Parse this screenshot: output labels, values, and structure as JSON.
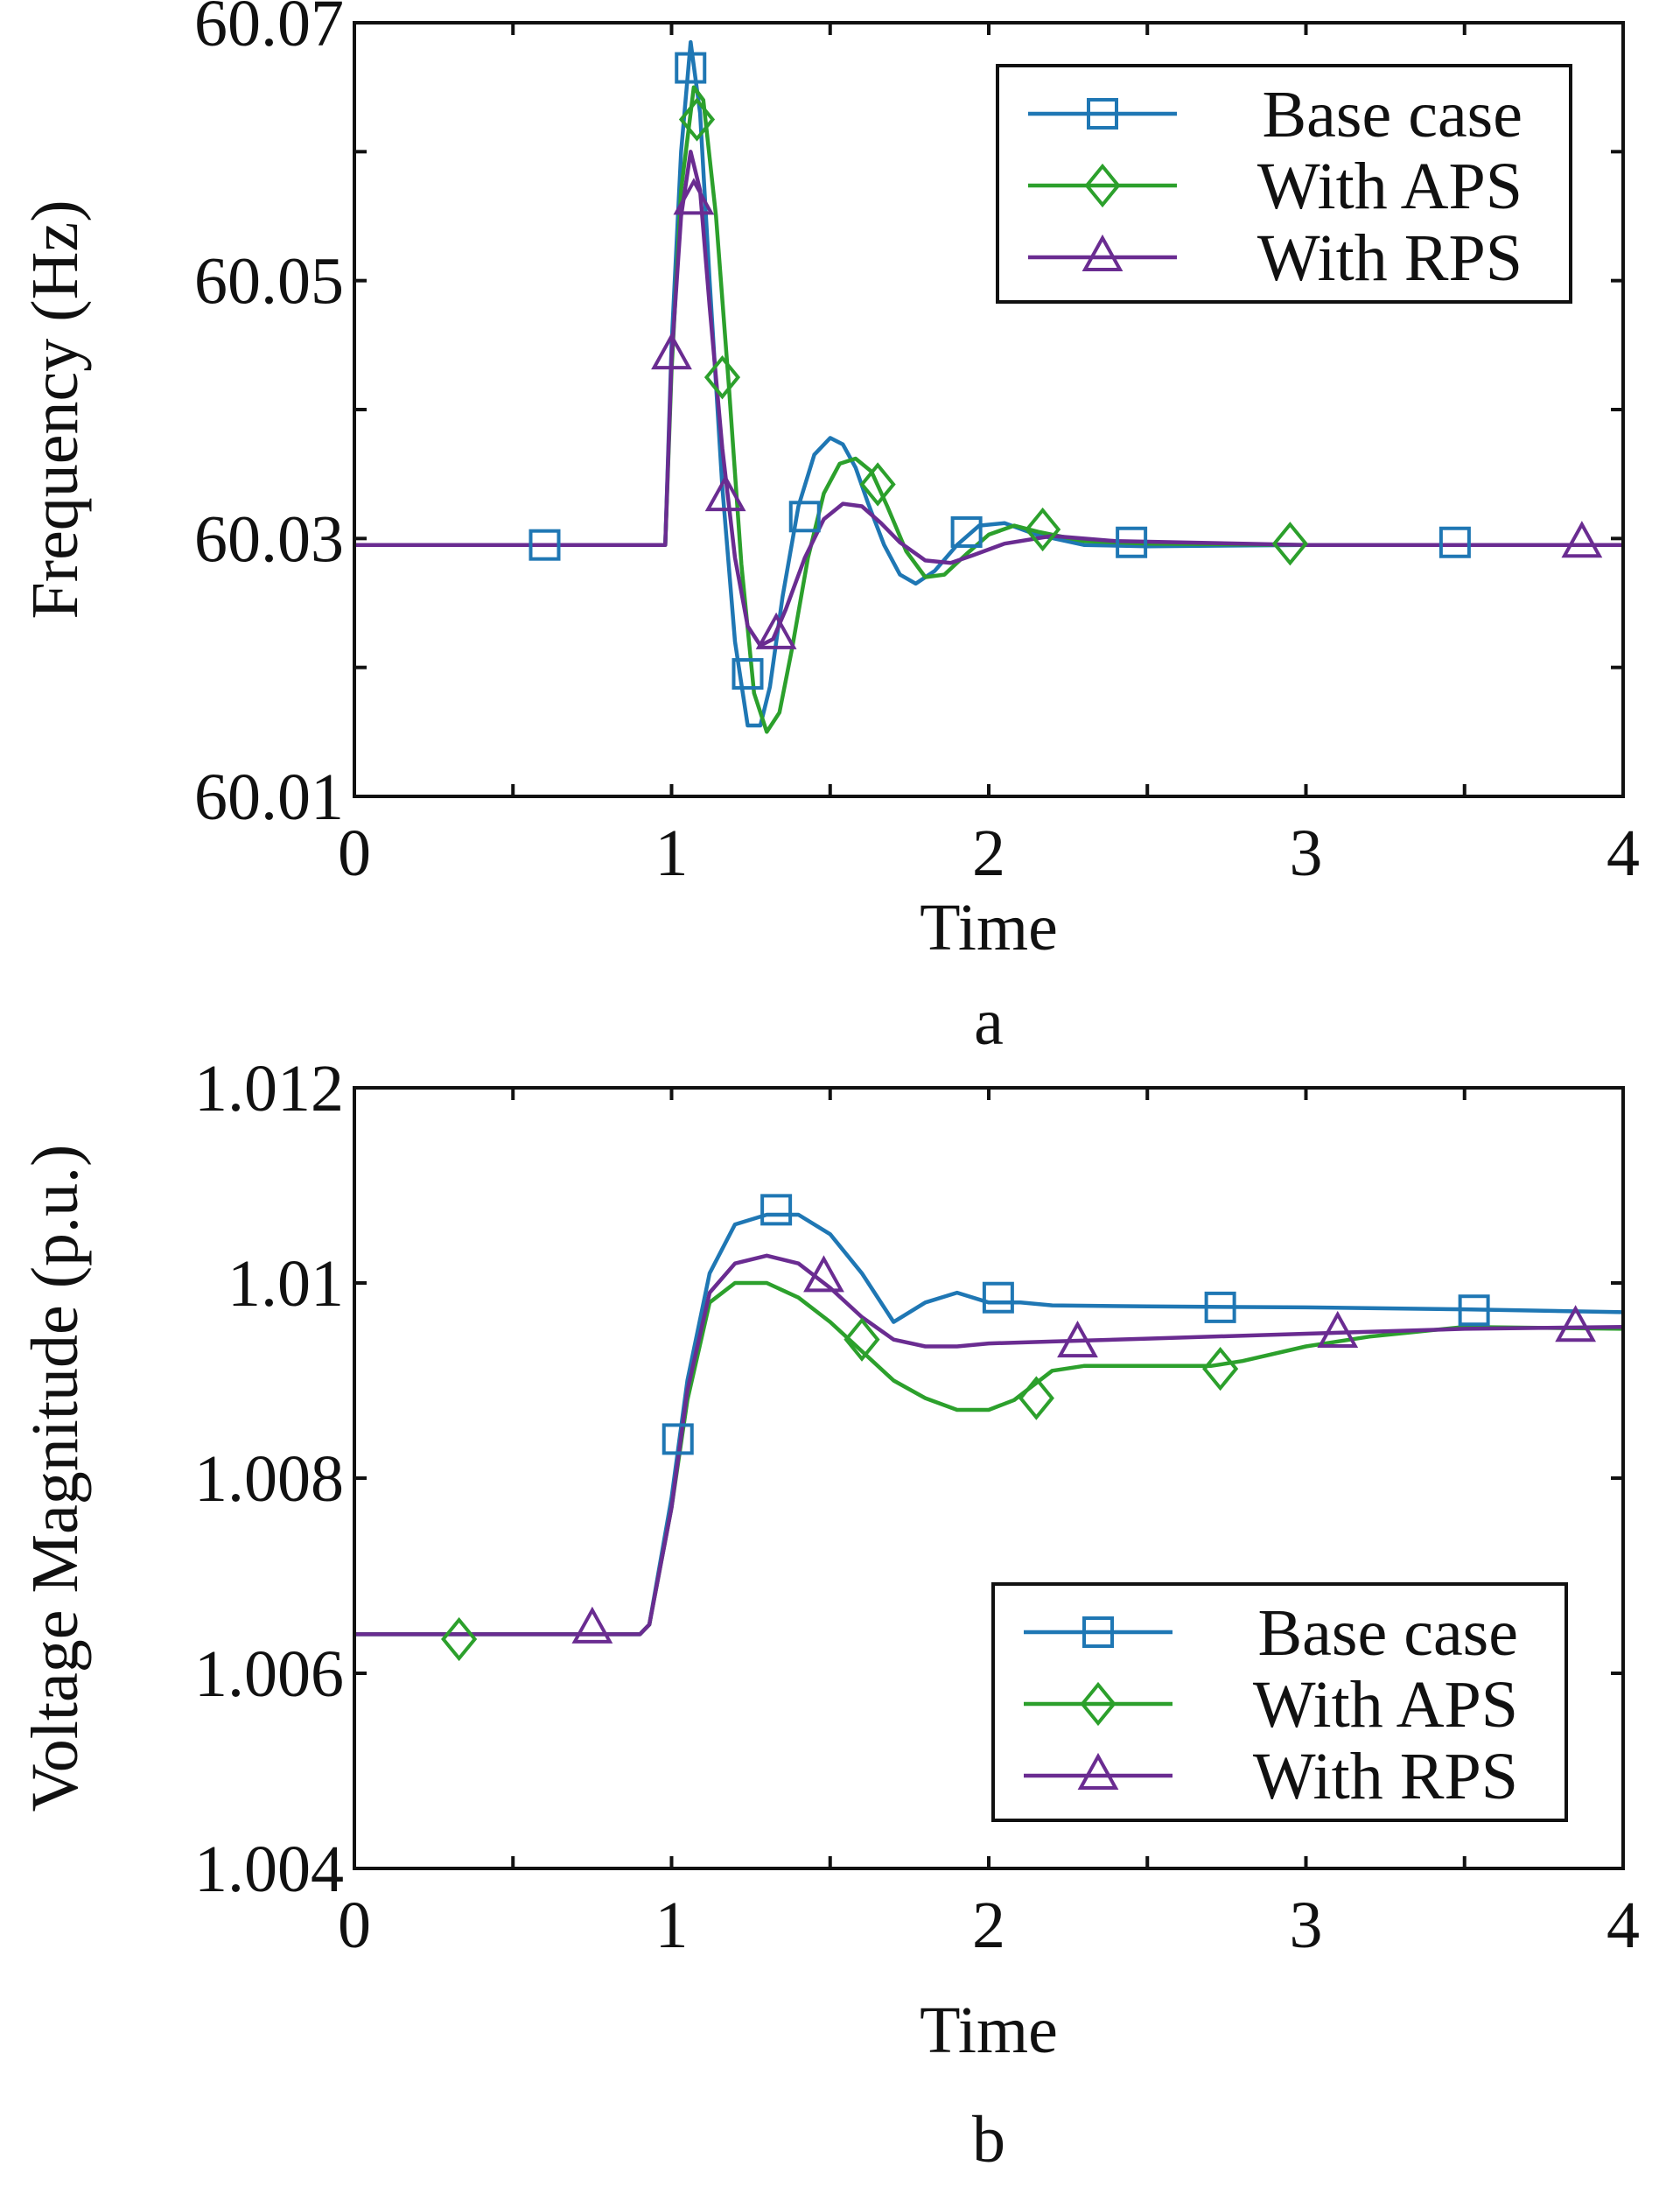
{
  "chart_data": [
    {
      "type": "line",
      "panel_label": "a",
      "xlabel": "Time",
      "ylabel": "Frequency (Hz)",
      "xlim": [
        0,
        4
      ],
      "ylim": [
        60.01,
        60.07
      ],
      "x_ticks": [
        0,
        1,
        2,
        3,
        4
      ],
      "x_tick_labels": [
        "0",
        "1",
        "2",
        "3",
        "4"
      ],
      "y_ticks": [
        60.01,
        60.02,
        60.03,
        60.04,
        60.05,
        60.06,
        60.07
      ],
      "y_tick_labels": [
        "60.01",
        "",
        "60.03",
        "",
        "60.05",
        "",
        "60.07"
      ],
      "legend_position": "top-right",
      "series": [
        {
          "name": "Base case",
          "color": "#1F77B4",
          "marker": "square",
          "x": [
            0,
            0.98,
            1.0,
            1.03,
            1.06,
            1.09,
            1.12,
            1.16,
            1.2,
            1.24,
            1.28,
            1.31,
            1.35,
            1.4,
            1.45,
            1.5,
            1.54,
            1.58,
            1.62,
            1.67,
            1.72,
            1.77,
            1.83,
            1.9,
            1.97,
            2.05,
            2.15,
            2.3,
            2.5,
            3.0,
            4.0
          ],
          "y": [
            60.0295,
            60.0295,
            60.045,
            60.06,
            60.0685,
            60.063,
            60.05,
            60.034,
            60.022,
            60.0155,
            60.0155,
            60.0185,
            60.0255,
            60.0325,
            60.0365,
            60.0378,
            60.0373,
            60.0355,
            60.0327,
            60.0295,
            60.0272,
            60.0265,
            60.0275,
            60.0295,
            60.031,
            60.0312,
            60.0303,
            60.0295,
            60.0294,
            60.0295,
            60.0295
          ],
          "marker_x": [
            0.6,
            1.06,
            1.24,
            1.42,
            1.93,
            2.45,
            3.47
          ],
          "marker_y": [
            60.0295,
            60.0665,
            60.0195,
            60.0317,
            60.0305,
            60.0297,
            60.0297
          ]
        },
        {
          "name": "With APS",
          "color": "#2CA02C",
          "marker": "diamond",
          "x": [
            0,
            0.98,
            1.0,
            1.03,
            1.07,
            1.1,
            1.14,
            1.18,
            1.22,
            1.26,
            1.3,
            1.34,
            1.38,
            1.43,
            1.48,
            1.53,
            1.58,
            1.63,
            1.68,
            1.74,
            1.8,
            1.86,
            1.93,
            2.0,
            2.08,
            2.16,
            2.3,
            2.5,
            3.0,
            4.0
          ],
          "y": [
            60.0295,
            60.0295,
            60.043,
            60.057,
            60.065,
            60.064,
            60.055,
            60.042,
            60.028,
            60.018,
            60.015,
            60.0165,
            60.0215,
            60.0285,
            60.0335,
            60.0358,
            60.0362,
            60.0352,
            60.0325,
            60.029,
            60.027,
            60.0272,
            60.0288,
            60.0303,
            60.031,
            60.0305,
            60.0298,
            60.0296,
            60.0295,
            60.0295
          ],
          "marker_x": [
            1.08,
            1.16,
            1.65,
            2.17,
            2.95
          ],
          "marker_y": [
            60.0625,
            60.0425,
            60.0342,
            60.0307,
            60.0296
          ]
        },
        {
          "name": "With RPS",
          "color": "#6A2C91",
          "marker": "triangle",
          "x": [
            0,
            0.98,
            1.0,
            1.03,
            1.06,
            1.09,
            1.12,
            1.16,
            1.2,
            1.24,
            1.28,
            1.32,
            1.36,
            1.42,
            1.48,
            1.54,
            1.6,
            1.66,
            1.72,
            1.8,
            1.88,
            1.95,
            2.05,
            2.2,
            2.4,
            3.0,
            4.0
          ],
          "y": [
            60.0295,
            60.0295,
            60.044,
            60.055,
            60.06,
            60.057,
            60.048,
            60.037,
            60.0285,
            60.0232,
            60.0217,
            60.0222,
            60.0245,
            60.0285,
            60.0315,
            60.0327,
            60.0325,
            60.0312,
            60.0297,
            60.0283,
            60.0281,
            60.0287,
            60.0296,
            60.0302,
            60.0298,
            60.0295,
            60.0295
          ],
          "marker_x": [
            1.0,
            1.07,
            1.17,
            1.33,
            3.87
          ],
          "marker_y": [
            60.0442,
            60.0562,
            60.0332,
            60.0225,
            60.0296
          ]
        }
      ]
    },
    {
      "type": "line",
      "panel_label": "b",
      "xlabel": "Time",
      "ylabel": "Voltage Magnitude (p.u.)",
      "xlim": [
        0,
        4
      ],
      "ylim": [
        1.004,
        1.012
      ],
      "x_ticks": [
        0,
        1,
        2,
        3,
        4
      ],
      "x_tick_labels": [
        "0",
        "1",
        "2",
        "3",
        "4"
      ],
      "y_ticks": [
        1.004,
        1.006,
        1.008,
        1.01,
        1.012
      ],
      "y_tick_labels": [
        "1.004",
        "1.006",
        "1.008",
        "1.01",
        "1.012"
      ],
      "legend_position": "bottom-right",
      "series": [
        {
          "name": "Base case",
          "color": "#1F77B4",
          "marker": "square",
          "x": [
            0,
            0.9,
            0.93,
            1.0,
            1.05,
            1.12,
            1.2,
            1.3,
            1.4,
            1.5,
            1.6,
            1.7,
            1.8,
            1.9,
            2.0,
            2.1,
            2.2,
            2.5,
            3.0,
            3.5,
            4.0
          ],
          "y": [
            1.0064,
            1.0064,
            1.0065,
            1.0078,
            1.009,
            1.0101,
            1.0106,
            1.0107,
            1.0107,
            1.0105,
            1.0101,
            1.0096,
            1.0098,
            1.0099,
            1.0098,
            1.0098,
            1.00977,
            1.00976,
            1.00975,
            1.00973,
            1.0097
          ],
          "marker_x": [
            1.02,
            1.33,
            2.03,
            2.73,
            3.53
          ],
          "marker_y": [
            1.0084,
            1.01075,
            1.00985,
            1.00975,
            1.00972
          ]
        },
        {
          "name": "With APS",
          "color": "#2CA02C",
          "marker": "diamond",
          "x": [
            0,
            0.9,
            0.93,
            1.0,
            1.05,
            1.12,
            1.2,
            1.3,
            1.4,
            1.5,
            1.6,
            1.7,
            1.8,
            1.9,
            2.0,
            2.08,
            2.2,
            2.3,
            2.5,
            2.7,
            2.8,
            3.0,
            3.2,
            3.5,
            4.0
          ],
          "y": [
            1.0064,
            1.0064,
            1.0065,
            1.0077,
            1.0088,
            1.0098,
            1.01,
            1.01,
            1.00985,
            1.0096,
            1.0093,
            1.009,
            1.00882,
            1.0087,
            1.0087,
            1.0088,
            1.0091,
            1.00915,
            1.00915,
            1.00915,
            1.0092,
            1.00935,
            1.00945,
            1.00955,
            1.00953
          ],
          "marker_x": [
            0.33,
            1.6,
            2.15,
            2.73
          ],
          "marker_y": [
            1.00635,
            1.00942,
            1.00882,
            1.00912
          ]
        },
        {
          "name": "With RPS",
          "color": "#6A2C91",
          "marker": "triangle",
          "x": [
            0,
            0.9,
            0.93,
            1.0,
            1.05,
            1.12,
            1.2,
            1.3,
            1.4,
            1.5,
            1.6,
            1.7,
            1.8,
            1.9,
            2.0,
            2.2,
            2.5,
            3.0,
            3.5,
            4.0
          ],
          "y": [
            1.0064,
            1.0064,
            1.0065,
            1.0077,
            1.0089,
            1.0099,
            1.0102,
            1.01028,
            1.0102,
            1.00995,
            1.00965,
            1.00942,
            1.00935,
            1.00935,
            1.00938,
            1.0094,
            1.00943,
            1.00948,
            1.00953,
            1.00955
          ],
          "marker_x": [
            0.75,
            1.48,
            2.28,
            3.1,
            3.85
          ],
          "marker_y": [
            1.00645,
            1.01005,
            1.00938,
            1.00948,
            1.00954
          ]
        }
      ]
    }
  ]
}
